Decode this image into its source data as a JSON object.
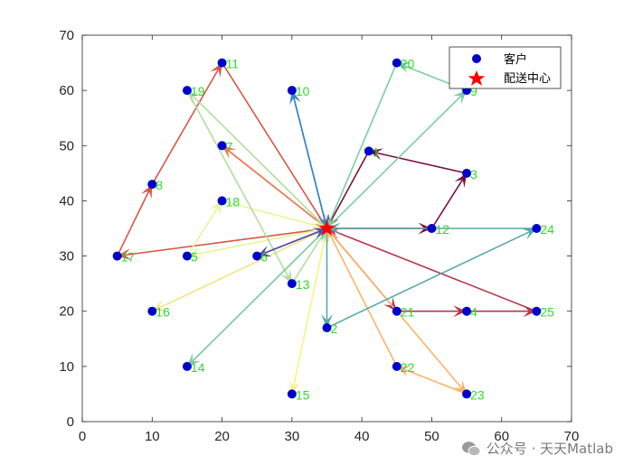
{
  "chart_data": {
    "type": "scatter",
    "xlim": [
      0,
      70
    ],
    "ylim": [
      0,
      70
    ],
    "xticks": [
      "0",
      "10",
      "20",
      "30",
      "40",
      "50",
      "60",
      "70"
    ],
    "yticks": [
      "0",
      "10",
      "20",
      "30",
      "40",
      "50",
      "60",
      "70"
    ],
    "grid": false,
    "legend_position": "top-right",
    "legend": {
      "customers": "客户",
      "depot": "配送中心"
    },
    "depot": {
      "x": 35,
      "y": 35
    },
    "customers": [
      {
        "id": "1",
        "x": 41,
        "y": 49
      },
      {
        "id": "2",
        "x": 35,
        "y": 17
      },
      {
        "id": "3",
        "x": 55,
        "y": 45
      },
      {
        "id": "4",
        "x": 55,
        "y": 20
      },
      {
        "id": "5",
        "x": 15,
        "y": 30
      },
      {
        "id": "6",
        "x": 25,
        "y": 30
      },
      {
        "id": "7",
        "x": 20,
        "y": 50
      },
      {
        "id": "8",
        "x": 10,
        "y": 43
      },
      {
        "id": "9",
        "x": 55,
        "y": 60
      },
      {
        "id": "10",
        "x": 30,
        "y": 60
      },
      {
        "id": "11",
        "x": 20,
        "y": 65
      },
      {
        "id": "12",
        "x": 50,
        "y": 35
      },
      {
        "id": "13",
        "x": 30,
        "y": 25
      },
      {
        "id": "14",
        "x": 15,
        "y": 10
      },
      {
        "id": "15",
        "x": 30,
        "y": 5
      },
      {
        "id": "16",
        "x": 10,
        "y": 20
      },
      {
        "id": "17",
        "x": 5,
        "y": 30
      },
      {
        "id": "18",
        "x": 20,
        "y": 40
      },
      {
        "id": "19",
        "x": 15,
        "y": 60
      },
      {
        "id": "20",
        "x": 45,
        "y": 65
      },
      {
        "id": "21",
        "x": 45,
        "y": 20
      },
      {
        "id": "22",
        "x": 45,
        "y": 10
      },
      {
        "id": "23",
        "x": 55,
        "y": 5
      },
      {
        "id": "24",
        "x": 65,
        "y": 35
      },
      {
        "id": "25",
        "x": 65,
        "y": 20
      }
    ],
    "routes": [
      {
        "color": "#7a0f3d",
        "path": [
          "depot",
          "12",
          "3",
          "1",
          "depot"
        ]
      },
      {
        "color": "#b5384a",
        "path": [
          "depot",
          "21",
          "4",
          "25",
          "depot"
        ]
      },
      {
        "color": "#d95545",
        "path": [
          "depot",
          "17",
          "8",
          "11",
          "depot"
        ]
      },
      {
        "color": "#f07a50",
        "path": [
          "depot",
          "7",
          "depot"
        ]
      },
      {
        "color": "#fbb469",
        "path": [
          "depot",
          "23",
          "22",
          "depot"
        ]
      },
      {
        "color": "#f2e68c",
        "path": [
          "depot",
          "16",
          "depot"
        ]
      },
      {
        "color": "#f6f48e",
        "path": [
          "depot",
          "15",
          "depot"
        ]
      },
      {
        "color": "#e6f598",
        "path": [
          "depot",
          "5",
          "18",
          "depot"
        ]
      },
      {
        "color": "#b1de9e",
        "path": [
          "depot",
          "19",
          "13",
          "depot"
        ]
      },
      {
        "color": "#81cda6",
        "path": [
          "depot",
          "14",
          "depot"
        ]
      },
      {
        "color": "#7ccfa0",
        "path": [
          "depot",
          "9",
          "20",
          "depot"
        ]
      },
      {
        "color": "#55aaa8",
        "path": [
          "depot",
          "2",
          "24",
          "depot"
        ]
      },
      {
        "color": "#3a86c0",
        "path": [
          "depot",
          "10",
          "depot"
        ]
      },
      {
        "color": "#5b4ea8",
        "path": [
          "depot",
          "6",
          "depot"
        ]
      }
    ],
    "colors": {
      "customer_marker": "#0000cd",
      "depot_marker": "#ff0000",
      "point_label": "#2ddc2d"
    }
  },
  "watermark": "公众号 · 天天Matlab"
}
